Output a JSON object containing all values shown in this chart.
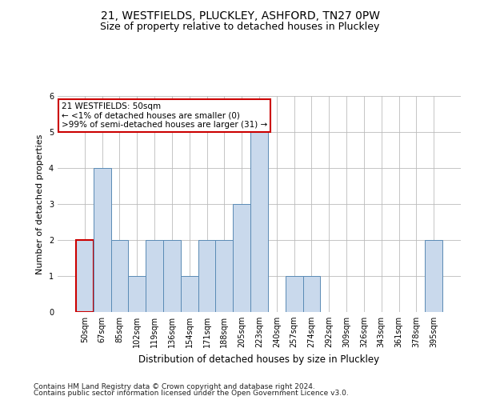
{
  "title1": "21, WESTFIELDS, PLUCKLEY, ASHFORD, TN27 0PW",
  "title2": "Size of property relative to detached houses in Pluckley",
  "xlabel": "Distribution of detached houses by size in Pluckley",
  "ylabel": "Number of detached properties",
  "categories": [
    "50sqm",
    "67sqm",
    "85sqm",
    "102sqm",
    "119sqm",
    "136sqm",
    "154sqm",
    "171sqm",
    "188sqm",
    "205sqm",
    "223sqm",
    "240sqm",
    "257sqm",
    "274sqm",
    "292sqm",
    "309sqm",
    "326sqm",
    "343sqm",
    "361sqm",
    "378sqm",
    "395sqm"
  ],
  "values": [
    2,
    4,
    2,
    1,
    2,
    2,
    1,
    2,
    2,
    3,
    5,
    0,
    1,
    1,
    0,
    0,
    0,
    0,
    0,
    0,
    2
  ],
  "highlight_index": 0,
  "bar_color": "#c9d9ec",
  "bar_edge_color": "#5a8ab5",
  "highlight_bar_edge_color": "#cc0000",
  "annotation_text": "21 WESTFIELDS: 50sqm\n← <1% of detached houses are smaller (0)\n>99% of semi-detached houses are larger (31) →",
  "annotation_box_color": "white",
  "annotation_box_edge": "#cc0000",
  "ylim": [
    0,
    6
  ],
  "yticks": [
    0,
    1,
    2,
    3,
    4,
    5,
    6
  ],
  "background_color": "white",
  "footer1": "Contains HM Land Registry data © Crown copyright and database right 2024.",
  "footer2": "Contains public sector information licensed under the Open Government Licence v3.0.",
  "title1_fontsize": 10,
  "title2_fontsize": 9,
  "xlabel_fontsize": 8.5,
  "ylabel_fontsize": 8,
  "tick_fontsize": 7,
  "annotation_fontsize": 7.5,
  "footer_fontsize": 6.5
}
